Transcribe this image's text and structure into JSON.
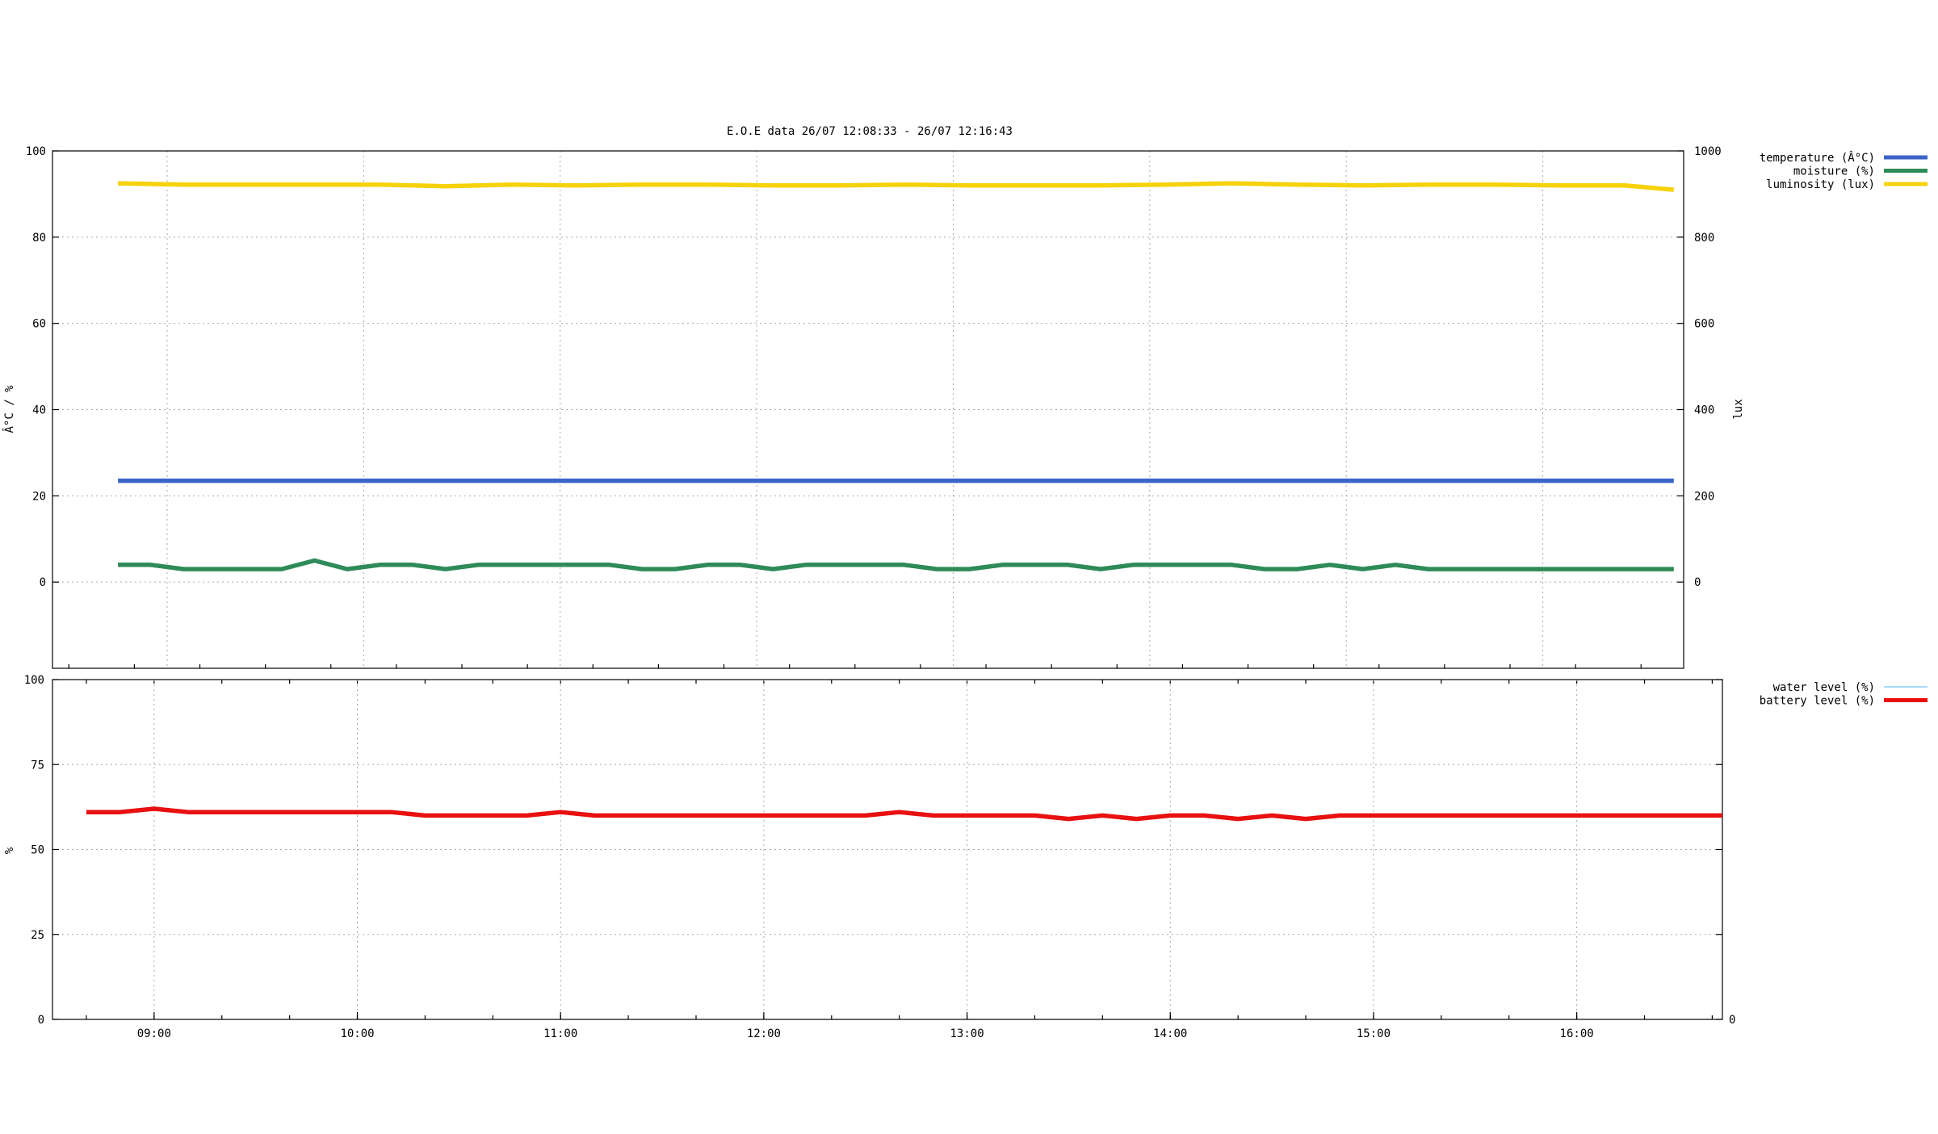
{
  "chart_data": [
    {
      "type": "line",
      "title": "E.O.E data 26/07 12:08:33 - 26/07 12:16:43",
      "ylabel": "Â°C / %",
      "y2label": "lux",
      "ylim": [
        -20,
        100
      ],
      "y2lim": [
        -200,
        1000
      ],
      "xlim": [
        "08:25",
        "16:43"
      ],
      "grid": true,
      "legend_position": "top-right, outside plot",
      "yticks": [
        "0",
        "20",
        "40",
        "60",
        "80",
        "100"
      ],
      "y2ticks": [
        "0",
        "200",
        "400",
        "600",
        "800",
        "1000"
      ],
      "series": [
        {
          "name": "temperature (Â°C)",
          "color": "#3c64c8",
          "axis": "y1",
          "x": [
            "08:45",
            "16:40"
          ],
          "values": [
            23.5,
            23.5
          ]
        },
        {
          "name": "moisture (%)",
          "color": "#2e8b57",
          "axis": "y1",
          "x": [
            "08:45",
            "08:55",
            "09:05",
            "09:15",
            "09:25",
            "09:35",
            "09:45",
            "09:55",
            "10:05",
            "10:15",
            "10:25",
            "10:35",
            "10:45",
            "10:55",
            "11:05",
            "11:15",
            "11:25",
            "11:35",
            "11:45",
            "11:55",
            "12:05",
            "12:15",
            "12:25",
            "12:35",
            "12:45",
            "12:55",
            "13:05",
            "13:15",
            "13:25",
            "13:35",
            "13:45",
            "13:55",
            "14:05",
            "14:15",
            "14:25",
            "14:35",
            "14:45",
            "14:55",
            "15:05",
            "15:15",
            "15:25",
            "15:35",
            "15:45",
            "15:55",
            "16:05",
            "16:15",
            "16:25",
            "16:40"
          ],
          "values": [
            4,
            4,
            3,
            3,
            3,
            3,
            5,
            3,
            4,
            4,
            3,
            4,
            4,
            4,
            4,
            4,
            3,
            3,
            4,
            4,
            3,
            4,
            4,
            4,
            4,
            3,
            3,
            4,
            4,
            4,
            3,
            4,
            4,
            4,
            4,
            3,
            3,
            4,
            3,
            4,
            3,
            3,
            3,
            3,
            3,
            3,
            3,
            3
          ]
        },
        {
          "name": "luminosity (lux)",
          "color": "#f5d20a",
          "axis": "y2",
          "x": [
            "08:45",
            "09:05",
            "09:25",
            "09:45",
            "10:05",
            "10:25",
            "10:45",
            "11:05",
            "11:25",
            "11:45",
            "12:05",
            "12:25",
            "12:45",
            "13:05",
            "13:25",
            "13:45",
            "14:05",
            "14:25",
            "14:45",
            "15:05",
            "15:25",
            "15:45",
            "16:05",
            "16:25",
            "16:40"
          ],
          "values": [
            925,
            922,
            922,
            922,
            922,
            918,
            922,
            920,
            922,
            922,
            920,
            920,
            922,
            920,
            920,
            920,
            922,
            925,
            922,
            920,
            922,
            922,
            920,
            920,
            910
          ]
        }
      ]
    },
    {
      "type": "line",
      "title": "",
      "ylabel": "%",
      "ylim": [
        0,
        100
      ],
      "y2ticks": [
        "0"
      ],
      "xlim": [
        "08:30",
        "16:43"
      ],
      "grid": true,
      "legend_position": "top-right, outside plot",
      "yticks": [
        "0",
        "25",
        "50",
        "75",
        "100"
      ],
      "xticks": [
        "09:00",
        "10:00",
        "11:00",
        "12:00",
        "13:00",
        "14:00",
        "15:00",
        "16:00"
      ],
      "series": [
        {
          "name": "water level (%)",
          "color": "#87cefa",
          "values": []
        },
        {
          "name": "battery level (%)",
          "color": "#e81010",
          "x": [
            "08:40",
            "08:50",
            "09:00",
            "09:10",
            "09:20",
            "09:30",
            "09:40",
            "09:50",
            "10:00",
            "10:10",
            "10:20",
            "10:30",
            "10:40",
            "10:50",
            "11:00",
            "11:10",
            "11:20",
            "11:30",
            "11:40",
            "11:50",
            "12:00",
            "12:10",
            "12:20",
            "12:30",
            "12:40",
            "12:50",
            "13:00",
            "13:10",
            "13:20",
            "13:30",
            "13:40",
            "13:50",
            "14:00",
            "14:10",
            "14:20",
            "14:30",
            "14:40",
            "14:50",
            "15:00",
            "15:10",
            "15:20",
            "15:30",
            "15:40",
            "15:50",
            "16:00",
            "16:10",
            "16:20",
            "16:43"
          ],
          "values": [
            61,
            61,
            62,
            61,
            61,
            61,
            61,
            61,
            61,
            61,
            60,
            60,
            60,
            60,
            61,
            60,
            60,
            60,
            60,
            60,
            60,
            60,
            60,
            60,
            61,
            60,
            60,
            60,
            60,
            59,
            60,
            59,
            60,
            60,
            59,
            60,
            59,
            60,
            60,
            60,
            60,
            60,
            60,
            60,
            60,
            60,
            60,
            60
          ]
        }
      ]
    }
  ]
}
